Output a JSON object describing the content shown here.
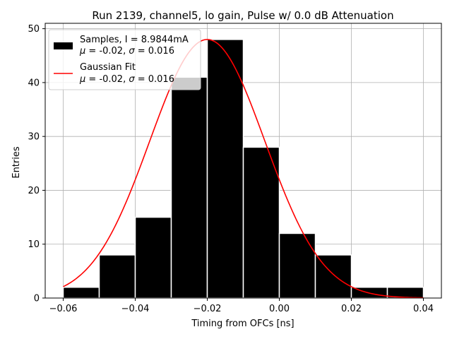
{
  "chart_data": {
    "type": "histogram",
    "title": "Run 2139, channel5, lo gain, Pulse w/ 0.0 dB Attenuation",
    "xlabel": "Timing from OFCs [ns]",
    "ylabel": "Entries",
    "xlim": [
      -0.065,
      0.045
    ],
    "ylim": [
      0,
      51
    ],
    "xticks": [
      -0.06,
      -0.04,
      -0.02,
      0.0,
      0.02,
      0.04
    ],
    "xtick_labels": [
      "−0.06",
      "−0.04",
      "−0.02",
      "0.00",
      "0.02",
      "0.04"
    ],
    "yticks": [
      0,
      10,
      20,
      30,
      40,
      50
    ],
    "ytick_labels": [
      "0",
      "10",
      "20",
      "30",
      "40",
      "50"
    ],
    "grid": true,
    "bins": [
      {
        "left": -0.06,
        "right": -0.05,
        "count": 2
      },
      {
        "left": -0.05,
        "right": -0.04,
        "count": 8
      },
      {
        "left": -0.04,
        "right": -0.03,
        "count": 15
      },
      {
        "left": -0.03,
        "right": -0.02,
        "count": 41
      },
      {
        "left": -0.02,
        "right": -0.01,
        "count": 48
      },
      {
        "left": -0.01,
        "right": 0.0,
        "count": 28
      },
      {
        "left": 0.0,
        "right": 0.01,
        "count": 12
      },
      {
        "left": 0.01,
        "right": 0.02,
        "count": 8
      },
      {
        "left": 0.02,
        "right": 0.03,
        "count": 2
      },
      {
        "left": 0.03,
        "right": 0.04,
        "count": 2
      }
    ],
    "bar_color": "#000000",
    "fit": {
      "name": "Gaussian Fit",
      "type": "gaussian",
      "amplitude": 48,
      "mu": -0.02,
      "sigma": 0.016,
      "x_range": [
        -0.06,
        0.04
      ],
      "color": "#ff0000"
    },
    "legend": {
      "position": "top-left",
      "entries": [
        {
          "kind": "patch",
          "color": "#000000",
          "line1": "Samples, I = 8.9844mA",
          "line2_prefix": " = -0.02, ",
          "line2_suffix": " = 0.016"
        },
        {
          "kind": "line",
          "color": "#ff0000",
          "line1": "Gaussian Fit",
          "line2_prefix": " = -0.02, ",
          "line2_suffix": " = 0.016"
        }
      ],
      "mu_symbol": "μ",
      "sigma_symbol": "σ"
    }
  }
}
